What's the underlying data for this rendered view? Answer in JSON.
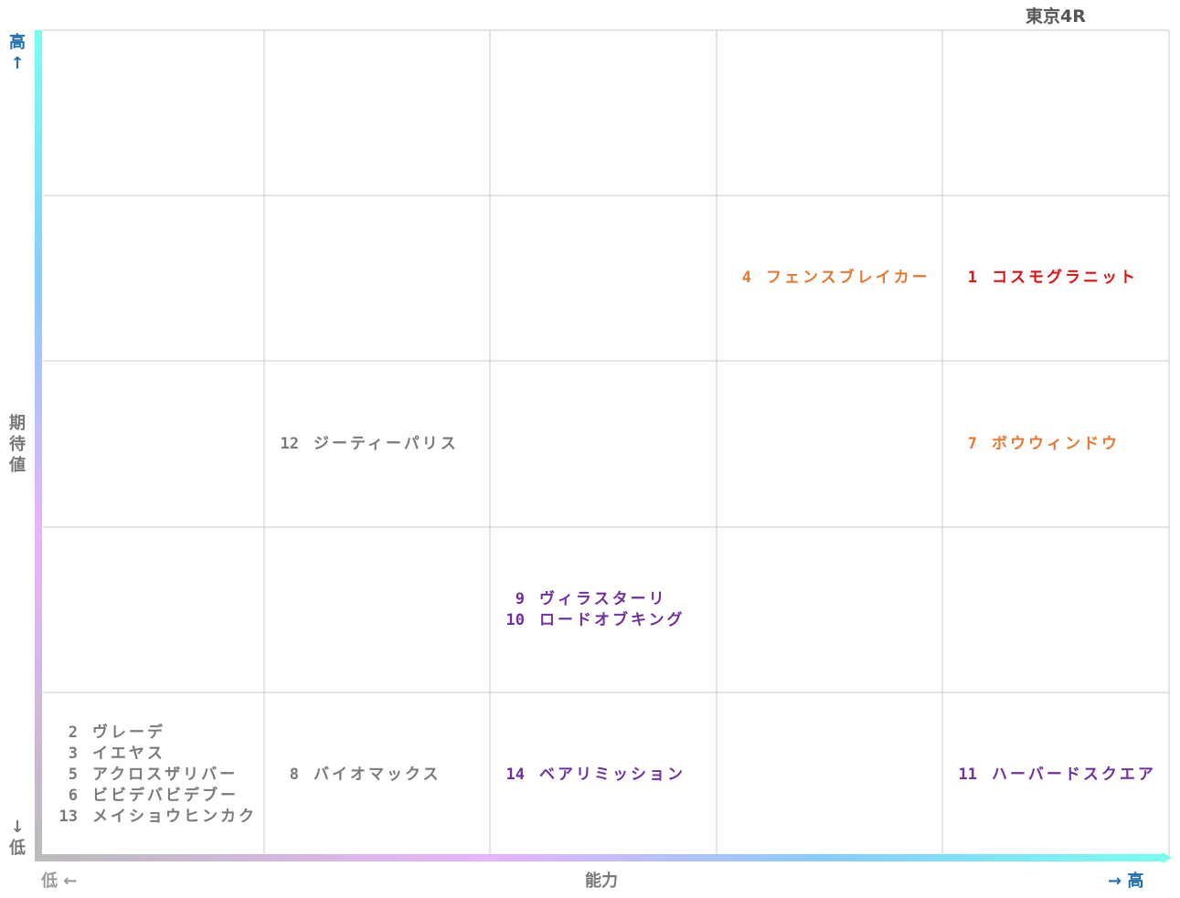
{
  "title": "東京4R",
  "y_axis": {
    "high": "高↑",
    "label": "期待値",
    "low": "↓低"
  },
  "x_axis": {
    "low": "低 ←",
    "label": "能力",
    "high": "→ 高"
  },
  "grid": {
    "rows": [
      {
        "cells": [
          {
            "entries": []
          },
          {
            "entries": []
          },
          {
            "entries": []
          },
          {
            "entries": []
          },
          {
            "entries": []
          }
        ]
      },
      {
        "cells": [
          {
            "entries": []
          },
          {
            "entries": []
          },
          {
            "entries": []
          },
          {
            "entries": [
              {
                "number": "4",
                "name": "フェンスブレイカー",
                "color": "#e8782f"
              }
            ]
          },
          {
            "entries": [
              {
                "number": "1",
                "name": "コスモグラニット",
                "color": "#e01010"
              }
            ]
          }
        ]
      },
      {
        "cells": [
          {
            "entries": []
          },
          {
            "entries": [
              {
                "number": "12",
                "name": "ジーティーパリス",
                "color": "#7a7a7a"
              }
            ]
          },
          {
            "entries": []
          },
          {
            "entries": []
          },
          {
            "entries": [
              {
                "number": "7",
                "name": "ボウウィンドウ",
                "color": "#e8782f"
              }
            ]
          }
        ]
      },
      {
        "cells": [
          {
            "entries": []
          },
          {
            "entries": []
          },
          {
            "entries": [
              {
                "number": "9",
                "name": "ヴィラスターリ",
                "color": "#7030a0"
              },
              {
                "number": "10",
                "name": "ロードオブキング",
                "color": "#7030a0"
              }
            ]
          },
          {
            "entries": []
          },
          {
            "entries": []
          }
        ]
      },
      {
        "cells": [
          {
            "entries": [
              {
                "number": "2",
                "name": "ヴレーデ",
                "color": "#7a7a7a"
              },
              {
                "number": "3",
                "name": "イエヤス",
                "color": "#7a7a7a"
              },
              {
                "number": "5",
                "name": "アクロスザリバー",
                "color": "#7a7a7a"
              },
              {
                "number": "6",
                "name": "ビビデバビデブー",
                "color": "#7a7a7a"
              },
              {
                "number": "13",
                "name": "メイショウヒンカク",
                "color": "#7a7a7a"
              }
            ]
          },
          {
            "entries": [
              {
                "number": "8",
                "name": "バイオマックス",
                "color": "#7a7a7a"
              }
            ]
          },
          {
            "entries": [
              {
                "number": "14",
                "name": "ベアリミッション",
                "color": "#7030a0"
              }
            ]
          },
          {
            "entries": []
          },
          {
            "entries": [
              {
                "number": "11",
                "name": "ハーバードスクエア",
                "color": "#7030a0"
              }
            ]
          }
        ]
      }
    ]
  }
}
